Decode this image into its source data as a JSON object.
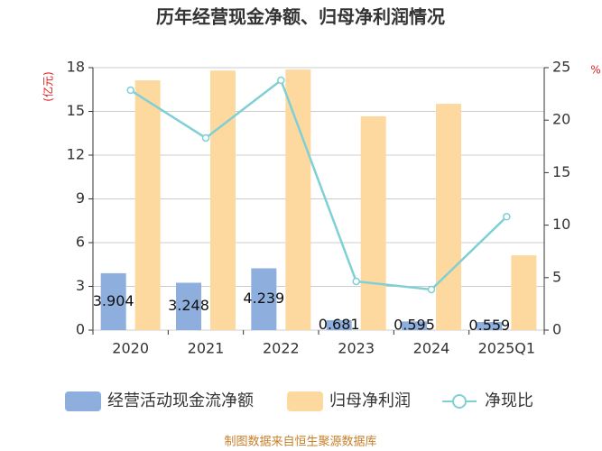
{
  "chart_data": {
    "type": "bar-line",
    "title": "历年经营现金净额、归母净利润情况",
    "y_label": "(亿元)",
    "y2_label": "%",
    "source": "制图数据来自恒生聚源数据库",
    "categories": [
      "2020",
      "2021",
      "2022",
      "2023",
      "2024",
      "2025Q1"
    ],
    "ylim": [
      0,
      18
    ],
    "yticks": [
      0,
      3,
      6,
      9,
      12,
      15,
      18
    ],
    "y2lim": [
      0,
      25
    ],
    "y2ticks": [
      0,
      5,
      10,
      15,
      20,
      25
    ],
    "grid": true,
    "series": [
      {
        "name": "经营活动现金流净额",
        "type": "bar",
        "color": "#8eaedd",
        "values": [
          3.904,
          3.248,
          4.239,
          0.681,
          0.595,
          0.559
        ]
      },
      {
        "name": "归母净利润",
        "type": "bar",
        "color": "#fdd9a0",
        "values": [
          17.13,
          17.8,
          17.87,
          14.66,
          15.52,
          5.13
        ]
      },
      {
        "name": "净现比",
        "type": "line",
        "axis": "y2",
        "color": "#7fd0d4",
        "values": [
          22.85,
          18.3,
          23.8,
          4.64,
          3.87,
          10.8
        ]
      }
    ]
  }
}
